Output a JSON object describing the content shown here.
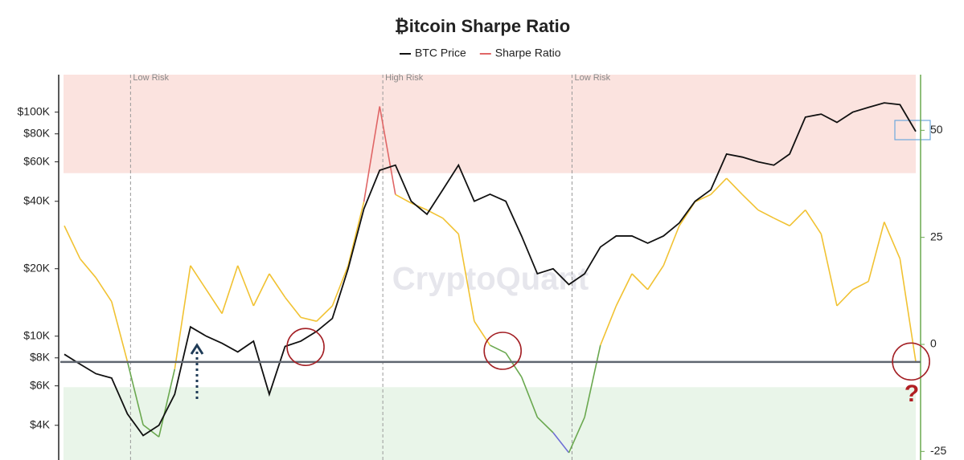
{
  "chart_data": {
    "type": "line",
    "title": "₿itcoin Sharpe Ratio",
    "watermark": "CryptoQuant",
    "log_scale_y": true,
    "ylim": [
      2800,
      147000
    ],
    "yticks": [
      {
        "value": 4000,
        "label": "$4K"
      },
      {
        "value": 6000,
        "label": "$6K"
      },
      {
        "value": 8000,
        "label": "$8K"
      },
      {
        "value": 10000,
        "label": "$10K"
      },
      {
        "value": 20000,
        "label": "$20K"
      },
      {
        "value": 40000,
        "label": "$40K"
      },
      {
        "value": 60000,
        "label": "$60K"
      },
      {
        "value": 80000,
        "label": "$80K"
      },
      {
        "value": 100000,
        "label": "$100K"
      }
    ],
    "y2lim": [
      -27,
      63
    ],
    "y2ticks": [
      -25,
      0,
      25,
      50
    ],
    "zones": [
      {
        "from": 40,
        "to": 63,
        "color": "#fbe3df"
      },
      {
        "from": -27,
        "to": -10,
        "color": "#e9f5e9"
      }
    ],
    "vertical_lines": [
      {
        "x": 4.2,
        "label": "Low Risk"
      },
      {
        "x": 20.2,
        "label": "High Risk"
      },
      {
        "x": 32.2,
        "label": "Low Risk"
      }
    ],
    "reference_line": {
      "axis": "y2",
      "value": -4.1,
      "color": "#5f6670"
    },
    "circles": [
      {
        "x": 15.3,
        "y2": -0.6
      },
      {
        "x": 27.8,
        "y2": -1.5
      },
      {
        "x": 53.7,
        "y2": -4
      }
    ],
    "question_mark": "?",
    "series": [
      {
        "name": "BTC Price",
        "color": "#111111",
        "axis": "y",
        "values": [
          8300,
          7500,
          6800,
          6500,
          4500,
          3600,
          4000,
          5500,
          11000,
          10000,
          9300,
          8500,
          9500,
          5500,
          9000,
          9500,
          10500,
          12000,
          20000,
          37000,
          55000,
          58000,
          40000,
          35000,
          45000,
          58000,
          40000,
          43000,
          40000,
          28000,
          19000,
          20000,
          17000,
          19000,
          25000,
          28000,
          28000,
          26000,
          28000,
          32000,
          40000,
          45000,
          65000,
          63000,
          60000,
          58000,
          65000,
          95000,
          98000,
          90000,
          100000,
          105000,
          110000,
          108000,
          82000
        ]
      },
      {
        "name": "Sharpe Ratio",
        "color": "#e06666",
        "axis": "y2",
        "color_thresholds": [
          {
            "above": 40,
            "color": "#e06666"
          },
          {
            "above": 0,
            "color": "#f1c232"
          },
          {
            "above": -22,
            "color": "#6aa84f"
          },
          {
            "above": -27,
            "color": "#6d6dd6"
          }
        ],
        "values": [
          27.7,
          20,
          15.6,
          10,
          -4,
          -18.8,
          -21.6,
          -5.8,
          18.4,
          12.8,
          7.2,
          18.4,
          9,
          16.5,
          11,
          6.3,
          5.4,
          9,
          18.4,
          33.3,
          55.6,
          35,
          33,
          31.4,
          29.5,
          25.8,
          5.4,
          -0.2,
          -2,
          -7.6,
          -17,
          -20.6,
          -25.3,
          -17,
          -0.2,
          9,
          16.5,
          12.8,
          18.4,
          27.7,
          33.3,
          35,
          38.8,
          35,
          31.4,
          29.5,
          27.7,
          31.4,
          25.8,
          9,
          12.8,
          14.7,
          28.6,
          20,
          -4
        ]
      }
    ]
  }
}
